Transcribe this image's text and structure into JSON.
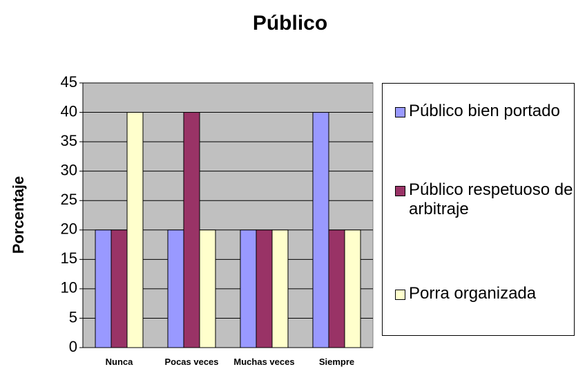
{
  "chart_data": {
    "type": "bar",
    "title": "Público",
    "y_label": "Porcentaje",
    "categories": [
      "Nunca",
      "Pocas veces",
      "Muchas veces",
      "Siempre"
    ],
    "series": [
      {
        "name": "Público bien portado",
        "color": "#9999ff",
        "values": [
          20,
          20,
          20,
          40
        ]
      },
      {
        "name": "Público respetuoso de arbitraje",
        "color": "#993366",
        "values": [
          20,
          40,
          20,
          20
        ]
      },
      {
        "name": "Porra organizada",
        "color": "#ffffcc",
        "values": [
          40,
          20,
          20,
          20
        ]
      }
    ],
    "ylim": [
      0,
      45
    ],
    "yticks": [
      0,
      5,
      10,
      15,
      20,
      25,
      30,
      35,
      40,
      45
    ],
    "grid": true,
    "legend": "right"
  }
}
